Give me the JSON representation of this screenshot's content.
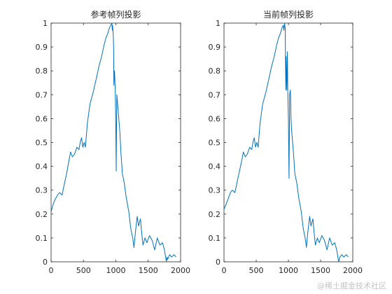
{
  "chart_data": [
    {
      "type": "line",
      "title": "参考帧列投影",
      "xlabel": "",
      "ylabel": "",
      "xlim": [
        0,
        2000
      ],
      "ylim": [
        0,
        1
      ],
      "xticks": [
        "0",
        "500",
        "1000",
        "1500",
        "2000"
      ],
      "yticks": [
        "0",
        "0.1",
        "0.2",
        "0.3",
        "0.4",
        "0.5",
        "0.6",
        "0.7",
        "0.8",
        "0.9",
        "1"
      ],
      "grid": false,
      "series": [
        {
          "color": "#0072BD",
          "x": [
            0,
            30,
            60,
            100,
            130,
            170,
            200,
            240,
            280,
            300,
            330,
            360,
            400,
            430,
            450,
            470,
            490,
            510,
            530,
            560,
            600,
            650,
            700,
            740,
            780,
            820,
            850,
            880,
            900,
            920,
            940,
            945,
            950,
            960,
            965,
            970,
            980,
            990,
            1000,
            1005,
            1010,
            1015,
            1030,
            1060,
            1080,
            1100,
            1130,
            1160,
            1200,
            1230,
            1260,
            1280,
            1300,
            1330,
            1350,
            1380,
            1400,
            1420,
            1450,
            1480,
            1520,
            1560,
            1600,
            1640,
            1680,
            1720,
            1750,
            1780,
            1790,
            1800,
            1830,
            1860,
            1900,
            1930
          ],
          "y": [
            0.21,
            0.24,
            0.26,
            0.28,
            0.29,
            0.28,
            0.32,
            0.37,
            0.43,
            0.46,
            0.44,
            0.45,
            0.48,
            0.47,
            0.5,
            0.52,
            0.48,
            0.5,
            0.48,
            0.58,
            0.66,
            0.71,
            0.77,
            0.82,
            0.86,
            0.91,
            0.94,
            0.96,
            0.98,
            0.99,
            1.0,
            0.97,
            0.99,
            0.95,
            0.9,
            0.74,
            0.8,
            0.72,
            0.55,
            0.38,
            0.55,
            0.7,
            0.65,
            0.55,
            0.45,
            0.37,
            0.33,
            0.27,
            0.21,
            0.14,
            0.1,
            0.06,
            0.12,
            0.19,
            0.15,
            0.18,
            0.12,
            0.07,
            0.1,
            0.08,
            0.11,
            0.09,
            0.05,
            0.1,
            0.07,
            0.08,
            0.05,
            0.0,
            0.02,
            0.01,
            0.03,
            0.02,
            0.03,
            0.02
          ]
        }
      ]
    },
    {
      "type": "line",
      "title": "当前帧列投影",
      "xlabel": "",
      "ylabel": "",
      "xlim": [
        0,
        2000
      ],
      "ylim": [
        0,
        1
      ],
      "xticks": [
        "0",
        "500",
        "1000",
        "1500",
        "2000"
      ],
      "yticks": [
        "0",
        "0.1",
        "0.2",
        "0.3",
        "0.4",
        "0.5",
        "0.6",
        "0.7",
        "0.8",
        "0.9",
        "1"
      ],
      "grid": false,
      "series": [
        {
          "color": "#0072BD",
          "x": [
            0,
            30,
            60,
            100,
            130,
            170,
            200,
            240,
            280,
            300,
            330,
            360,
            400,
            430,
            450,
            470,
            490,
            510,
            530,
            560,
            600,
            650,
            700,
            740,
            780,
            820,
            850,
            880,
            900,
            920,
            930,
            940,
            950,
            960,
            965,
            975,
            985,
            990,
            1000,
            1010,
            1020,
            1030,
            1035,
            1040,
            1050,
            1080,
            1100,
            1130,
            1160,
            1200,
            1230,
            1260,
            1280,
            1300,
            1330,
            1350,
            1380,
            1400,
            1420,
            1450,
            1480,
            1520,
            1560,
            1600,
            1640,
            1680,
            1720,
            1750,
            1780,
            1800,
            1830,
            1860,
            1900,
            1930
          ],
          "y": [
            0.22,
            0.24,
            0.26,
            0.29,
            0.3,
            0.29,
            0.33,
            0.38,
            0.43,
            0.46,
            0.44,
            0.45,
            0.48,
            0.47,
            0.5,
            0.52,
            0.48,
            0.5,
            0.48,
            0.58,
            0.66,
            0.71,
            0.77,
            0.82,
            0.86,
            0.91,
            0.94,
            0.96,
            0.98,
            0.99,
            0.97,
            1.0,
            0.98,
            0.72,
            0.86,
            0.72,
            0.88,
            0.72,
            0.6,
            0.35,
            0.7,
            0.72,
            0.68,
            0.6,
            0.55,
            0.45,
            0.37,
            0.33,
            0.27,
            0.21,
            0.14,
            0.1,
            0.06,
            0.12,
            0.19,
            0.15,
            0.18,
            0.12,
            0.07,
            0.1,
            0.08,
            0.11,
            0.09,
            0.05,
            0.1,
            0.07,
            0.08,
            0.05,
            0.0,
            0.02,
            0.03,
            0.02,
            0.03,
            0.02
          ]
        }
      ]
    }
  ],
  "watermark": "@稀土掘金技术社区"
}
